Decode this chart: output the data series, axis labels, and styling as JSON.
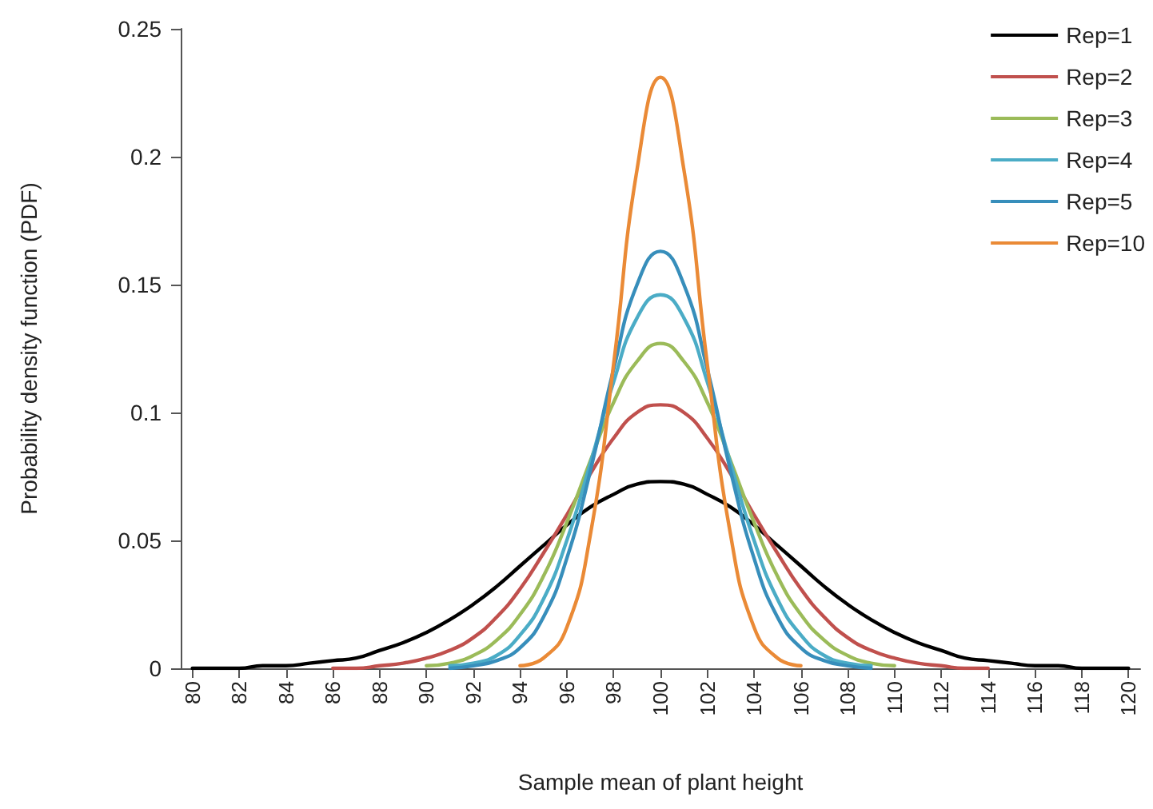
{
  "chart_data": {
    "type": "line",
    "xlabel": "Sample mean of plant height",
    "ylabel": "Probability density function (PDF)",
    "xlim": [
      79.5,
      120.5
    ],
    "xticks": [
      80,
      82,
      84,
      86,
      88,
      90,
      92,
      94,
      96,
      98,
      100,
      102,
      104,
      106,
      108,
      110,
      112,
      114,
      116,
      118,
      120
    ],
    "ylim": [
      0,
      0.25
    ],
    "yticks": [
      0,
      0.05,
      0.1,
      0.15,
      0.2,
      0.25
    ],
    "grid": false,
    "legend": "top right",
    "marker": "none",
    "line_style": "solid",
    "series": [
      {
        "name": "Rep=1",
        "color": "#000000",
        "x": [
          80,
          81,
          82,
          83,
          84,
          85,
          86,
          87,
          88,
          89,
          90,
          91,
          92,
          93,
          94,
          95,
          96,
          97,
          98,
          99,
          100,
          101,
          102,
          103,
          104,
          105,
          106,
          107,
          108,
          109,
          110,
          111,
          112,
          113,
          114,
          115,
          116,
          117,
          118,
          119,
          120
        ],
        "values": [
          0,
          0,
          0,
          0.001,
          0.001,
          0.002,
          0.003,
          0.004,
          0.007,
          0.01,
          0.014,
          0.019,
          0.025,
          0.032,
          0.04,
          0.048,
          0.056,
          0.063,
          0.068,
          0.072,
          0.073,
          0.072,
          0.068,
          0.063,
          0.056,
          0.048,
          0.04,
          0.032,
          0.025,
          0.019,
          0.014,
          0.01,
          0.007,
          0.004,
          0.003,
          0.002,
          0.001,
          0.001,
          0,
          0,
          0
        ]
      },
      {
        "name": "Rep=2",
        "color": "#c0504d",
        "x": [
          86,
          87,
          88,
          89,
          90,
          91,
          92,
          93,
          94,
          95,
          96,
          97,
          98,
          99,
          100,
          101,
          102,
          103,
          104,
          105,
          106,
          107,
          108,
          109,
          110,
          111,
          112,
          113,
          114
        ],
        "values": [
          0,
          0,
          0.001,
          0.002,
          0.004,
          0.007,
          0.012,
          0.02,
          0.031,
          0.045,
          0.06,
          0.076,
          0.09,
          0.1,
          0.103,
          0.1,
          0.09,
          0.076,
          0.06,
          0.045,
          0.031,
          0.02,
          0.012,
          0.007,
          0.004,
          0.002,
          0.001,
          0,
          0
        ]
      },
      {
        "name": "Rep=3",
        "color": "#9bbb59",
        "x": [
          90,
          91,
          92,
          93,
          94,
          95,
          96,
          97,
          98,
          99,
          100,
          101,
          102,
          103,
          104,
          105,
          106,
          107,
          108,
          109,
          110
        ],
        "values": [
          0.001,
          0.002,
          0.005,
          0.011,
          0.021,
          0.036,
          0.057,
          0.081,
          0.104,
          0.12,
          0.127,
          0.12,
          0.104,
          0.081,
          0.057,
          0.036,
          0.021,
          0.011,
          0.005,
          0.002,
          0.001
        ]
      },
      {
        "name": "Rep=4",
        "color": "#4bacc6",
        "x": [
          91,
          92,
          93,
          94,
          95,
          96,
          97,
          98,
          99,
          100,
          101,
          102,
          103,
          104,
          105,
          106,
          107,
          108,
          109
        ],
        "values": [
          0.001,
          0.002,
          0.005,
          0.013,
          0.027,
          0.05,
          0.08,
          0.112,
          0.137,
          0.146,
          0.137,
          0.112,
          0.08,
          0.05,
          0.027,
          0.013,
          0.005,
          0.002,
          0.001
        ]
      },
      {
        "name": "Rep=5",
        "color": "#378ebb",
        "x": [
          91,
          92,
          93,
          94,
          95,
          96,
          97,
          98,
          99,
          100,
          101,
          102,
          103,
          104,
          105,
          106,
          107,
          108,
          109
        ],
        "values": [
          0,
          0.001,
          0.003,
          0.008,
          0.02,
          0.043,
          0.077,
          0.117,
          0.15,
          0.163,
          0.15,
          0.117,
          0.077,
          0.043,
          0.02,
          0.008,
          0.003,
          0.001,
          0
        ]
      },
      {
        "name": "Rep=10",
        "color": "#ea8a36",
        "x": [
          94,
          95,
          96,
          97,
          98,
          99,
          100,
          101,
          102,
          103,
          104,
          105,
          106
        ],
        "values": [
          0.001,
          0.004,
          0.016,
          0.052,
          0.119,
          0.195,
          0.231,
          0.195,
          0.119,
          0.052,
          0.016,
          0.004,
          0.001
        ]
      }
    ]
  }
}
